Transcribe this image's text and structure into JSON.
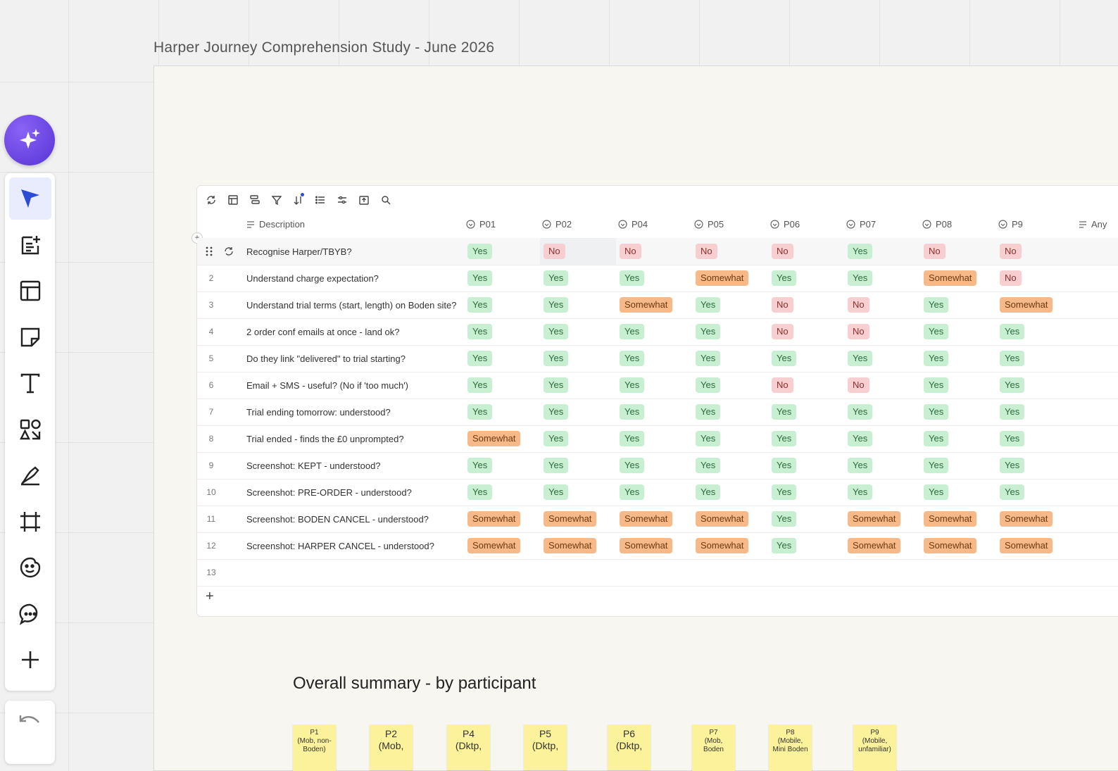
{
  "frame": {
    "title": "Harper Journey Comprehension Study - June 2026"
  },
  "sidebar": {
    "tools": [
      {
        "name": "select-tool",
        "icon": "cursor-icon"
      },
      {
        "name": "templates-tool",
        "icon": "doc-plus-icon"
      },
      {
        "name": "layout-tool",
        "icon": "layout-icon"
      },
      {
        "name": "sticky-note-tool",
        "icon": "sticky-note-icon"
      },
      {
        "name": "text-tool",
        "icon": "text-icon"
      },
      {
        "name": "shapes-tool",
        "icon": "shapes-icon"
      },
      {
        "name": "pen-tool",
        "icon": "pen-icon"
      },
      {
        "name": "frame-tool",
        "icon": "frame-icon"
      },
      {
        "name": "stickers-tool",
        "icon": "sticker-icon"
      },
      {
        "name": "comment-tool",
        "icon": "comment-icon"
      },
      {
        "name": "more-tools",
        "icon": "plus-icon"
      }
    ]
  },
  "table": {
    "columns": {
      "description": "Description",
      "participants": [
        "P01",
        "P02",
        "P04",
        "P05",
        "P06",
        "P07",
        "P08",
        "P9"
      ],
      "extra": "Any"
    },
    "rows": [
      {
        "num": "",
        "desc": "Recognise Harper/TBYB?",
        "vals": [
          "Yes",
          "No",
          "No",
          "No",
          "No",
          "Yes",
          "No",
          "No"
        ]
      },
      {
        "num": "2",
        "desc": "Understand charge expectation?",
        "vals": [
          "Yes",
          "Yes",
          "Yes",
          "Somewhat",
          "Yes",
          "Yes",
          "Somewhat",
          "No"
        ]
      },
      {
        "num": "3",
        "desc": "Understand trial terms (start, length) on Boden site?",
        "vals": [
          "Yes",
          "Yes",
          "Somewhat",
          "Yes",
          "No",
          "No",
          "Yes",
          "Somewhat"
        ]
      },
      {
        "num": "4",
        "desc": "2 order conf emails at once - land ok?",
        "vals": [
          "Yes",
          "Yes",
          "Yes",
          "Yes",
          "No",
          "No",
          "Yes",
          "Yes"
        ]
      },
      {
        "num": "5",
        "desc": "Do they link \"delivered\" to trial starting?",
        "vals": [
          "Yes",
          "Yes",
          "Yes",
          "Yes",
          "Yes",
          "Yes",
          "Yes",
          "Yes"
        ]
      },
      {
        "num": "6",
        "desc": "Email + SMS - useful? (No if 'too much')",
        "vals": [
          "Yes",
          "Yes",
          "Yes",
          "Yes",
          "No",
          "No",
          "Yes",
          "Yes"
        ]
      },
      {
        "num": "7",
        "desc": "Trial ending tomorrow: understood?",
        "vals": [
          "Yes",
          "Yes",
          "Yes",
          "Yes",
          "Yes",
          "Yes",
          "Yes",
          "Yes"
        ]
      },
      {
        "num": "8",
        "desc": "Trial ended - finds the £0 unprompted?",
        "vals": [
          "Somewhat",
          "Yes",
          "Yes",
          "Yes",
          "Yes",
          "Yes",
          "Yes",
          "Yes"
        ]
      },
      {
        "num": "9",
        "desc": "Screenshot: KEPT - understood?",
        "vals": [
          "Yes",
          "Yes",
          "Yes",
          "Yes",
          "Yes",
          "Yes",
          "Yes",
          "Yes"
        ]
      },
      {
        "num": "10",
        "desc": "Screenshot: PRE-ORDER - understood?",
        "vals": [
          "Yes",
          "Yes",
          "Yes",
          "Yes",
          "Yes",
          "Yes",
          "Yes",
          "Yes"
        ]
      },
      {
        "num": "11",
        "desc": "Screenshot: BODEN CANCEL - understood?",
        "vals": [
          "Somewhat",
          "Somewhat",
          "Somewhat",
          "Somewhat",
          "Yes",
          "Somewhat",
          "Somewhat",
          "Somewhat"
        ]
      },
      {
        "num": "12",
        "desc": "Screenshot: HARPER CANCEL - understood?",
        "vals": [
          "Somewhat",
          "Somewhat",
          "Somewhat",
          "Somewhat",
          "Yes",
          "Somewhat",
          "Somewhat",
          "Somewhat"
        ]
      },
      {
        "num": "13",
        "desc": "",
        "vals": [
          "",
          "",
          "",
          "",
          "",
          "",
          "",
          ""
        ]
      }
    ],
    "add_row_label": "+",
    "tag_colors": {
      "Yes": {
        "bg": "#c9efd3",
        "fg": "#2d6b3b"
      },
      "No": {
        "bg": "#f8cfd0",
        "fg": "#8a2d2d"
      },
      "Somewhat": {
        "bg": "#f7b987",
        "fg": "#6e3a12"
      }
    }
  },
  "summary": {
    "title": "Overall summary - by participant",
    "stickies": [
      {
        "line1": "P1",
        "line2": "(Mob, non-",
        "line3": "Boden)"
      },
      {
        "line1": "P2",
        "line2": "(Mob,",
        "line3": ""
      },
      {
        "line1": "P4",
        "line2": "(Dktp,",
        "line3": ""
      },
      {
        "line1": "P5",
        "line2": "(Dktp,",
        "line3": ""
      },
      {
        "line1": "P6",
        "line2": "(Dktp,",
        "line3": ""
      },
      {
        "line1": "P7",
        "line2": "(Mob,",
        "line3": "Boden"
      },
      {
        "line1": "P8",
        "line2": "(Mobile,",
        "line3": "Mini Boden"
      },
      {
        "line1": "P9",
        "line2": "(Mobile,",
        "line3": "unfamiliar)"
      }
    ]
  }
}
